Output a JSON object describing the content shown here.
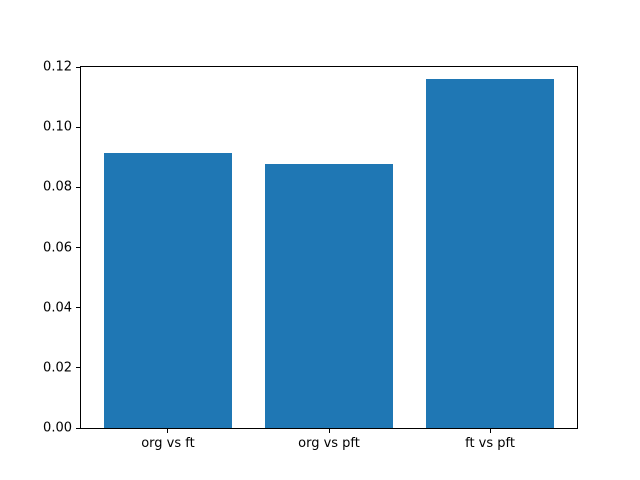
{
  "chart_data": {
    "type": "bar",
    "categories": [
      "org vs ft",
      "org vs pft",
      "ft vs pft"
    ],
    "values": [
      0.0915,
      0.0878,
      0.116
    ],
    "title": "",
    "xlabel": "",
    "ylabel": "",
    "ylim": [
      0,
      0.12
    ],
    "yticks": [
      0.0,
      0.02,
      0.04,
      0.06,
      0.08,
      0.1,
      0.12
    ],
    "ytick_format_decimals": 2,
    "bar_color": "#1f77b4",
    "grid": false,
    "legend": false,
    "background_color": "#ffffff",
    "axis_color": "#000000"
  }
}
